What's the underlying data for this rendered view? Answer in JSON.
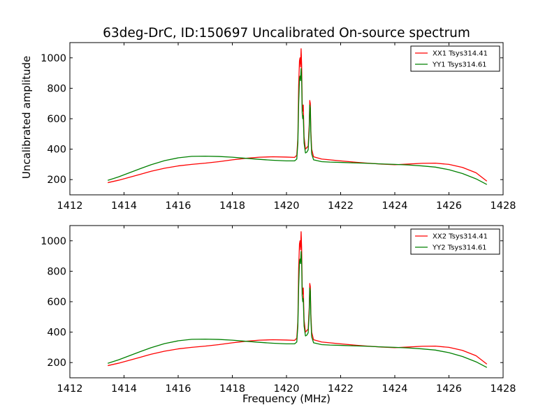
{
  "chart_data": {
    "type": "line",
    "title": "63deg-DrC, ID:150697 Uncalibrated On-source spectrum",
    "xlabel": "Frequency (MHz)",
    "ylabel": "Uncalibrated amplitude",
    "xlim": [
      1412,
      1428
    ],
    "ylim": [
      100,
      1100
    ],
    "xticks": [
      1412,
      1414,
      1416,
      1418,
      1420,
      1422,
      1424,
      1426,
      1428
    ],
    "yticks": [
      200,
      400,
      600,
      800,
      1000
    ],
    "colors": {
      "xx": "#ff0000",
      "yy": "#008000"
    },
    "panels": [
      {
        "legend_position": "top-right",
        "series": [
          {
            "name": "XX1 Tsys314.41",
            "color": "#ff0000",
            "points": [
              [
                1413.4,
                180
              ],
              [
                1413.8,
                196
              ],
              [
                1414.2,
                215
              ],
              [
                1414.6,
                235
              ],
              [
                1415.0,
                255
              ],
              [
                1415.5,
                275
              ],
              [
                1416.0,
                290
              ],
              [
                1416.5,
                300
              ],
              [
                1417.0,
                308
              ],
              [
                1417.5,
                318
              ],
              [
                1418.0,
                330
              ],
              [
                1418.5,
                340
              ],
              [
                1419.0,
                347
              ],
              [
                1419.5,
                350
              ],
              [
                1420.0,
                348
              ],
              [
                1420.3,
                346
              ],
              [
                1420.38,
                360
              ],
              [
                1420.42,
                470
              ],
              [
                1420.45,
                820
              ],
              [
                1420.48,
                980
              ],
              [
                1420.5,
                1000
              ],
              [
                1420.52,
                940
              ],
              [
                1420.54,
                1060
              ],
              [
                1420.56,
                950
              ],
              [
                1420.58,
                700
              ],
              [
                1420.6,
                650
              ],
              [
                1420.62,
                690
              ],
              [
                1420.65,
                480
              ],
              [
                1420.7,
                400
              ],
              [
                1420.75,
                410
              ],
              [
                1420.8,
                420
              ],
              [
                1420.84,
                560
              ],
              [
                1420.86,
                720
              ],
              [
                1420.88,
                700
              ],
              [
                1420.9,
                520
              ],
              [
                1420.93,
                400
              ],
              [
                1421.0,
                350
              ],
              [
                1421.3,
                335
              ],
              [
                1421.6,
                330
              ],
              [
                1422.0,
                323
              ],
              [
                1422.5,
                315
              ],
              [
                1423.0,
                308
              ],
              [
                1423.5,
                302
              ],
              [
                1424.0,
                298
              ],
              [
                1424.5,
                302
              ],
              [
                1425.0,
                307
              ],
              [
                1425.5,
                308
              ],
              [
                1426.0,
                300
              ],
              [
                1426.5,
                280
              ],
              [
                1427.0,
                245
              ],
              [
                1427.4,
                190
              ]
            ]
          },
          {
            "name": "YY1 Tsys314.61",
            "color": "#008000",
            "points": [
              [
                1413.4,
                195
              ],
              [
                1413.8,
                218
              ],
              [
                1414.2,
                245
              ],
              [
                1414.6,
                272
              ],
              [
                1415.0,
                298
              ],
              [
                1415.5,
                325
              ],
              [
                1416.0,
                343
              ],
              [
                1416.5,
                353
              ],
              [
                1417.0,
                354
              ],
              [
                1417.5,
                352
              ],
              [
                1418.0,
                347
              ],
              [
                1418.5,
                340
              ],
              [
                1419.0,
                333
              ],
              [
                1419.5,
                327
              ],
              [
                1420.0,
                323
              ],
              [
                1420.3,
                323
              ],
              [
                1420.38,
                335
              ],
              [
                1420.42,
                440
              ],
              [
                1420.45,
                700
              ],
              [
                1420.48,
                860
              ],
              [
                1420.5,
                880
              ],
              [
                1420.52,
                850
              ],
              [
                1420.54,
                930
              ],
              [
                1420.56,
                860
              ],
              [
                1420.58,
                640
              ],
              [
                1420.6,
                600
              ],
              [
                1420.62,
                620
              ],
              [
                1420.65,
                440
              ],
              [
                1420.7,
                375
              ],
              [
                1420.75,
                380
              ],
              [
                1420.8,
                395
              ],
              [
                1420.84,
                520
              ],
              [
                1420.86,
                690
              ],
              [
                1420.88,
                670
              ],
              [
                1420.9,
                490
              ],
              [
                1420.93,
                370
              ],
              [
                1421.0,
                330
              ],
              [
                1421.3,
                318
              ],
              [
                1421.6,
                315
              ],
              [
                1422.0,
                313
              ],
              [
                1422.5,
                310
              ],
              [
                1423.0,
                307
              ],
              [
                1423.5,
                303
              ],
              [
                1424.0,
                300
              ],
              [
                1424.5,
                296
              ],
              [
                1425.0,
                290
              ],
              [
                1425.5,
                282
              ],
              [
                1426.0,
                265
              ],
              [
                1426.5,
                240
              ],
              [
                1427.0,
                205
              ],
              [
                1427.4,
                168
              ]
            ]
          }
        ]
      },
      {
        "legend_position": "top-right",
        "series": [
          {
            "name": "XX2 Tsys314.41",
            "color": "#ff0000",
            "points": [
              [
                1413.4,
                180
              ],
              [
                1413.8,
                196
              ],
              [
                1414.2,
                215
              ],
              [
                1414.6,
                235
              ],
              [
                1415.0,
                255
              ],
              [
                1415.5,
                275
              ],
              [
                1416.0,
                290
              ],
              [
                1416.5,
                300
              ],
              [
                1417.0,
                308
              ],
              [
                1417.5,
                318
              ],
              [
                1418.0,
                330
              ],
              [
                1418.5,
                340
              ],
              [
                1419.0,
                347
              ],
              [
                1419.5,
                350
              ],
              [
                1420.0,
                348
              ],
              [
                1420.3,
                346
              ],
              [
                1420.38,
                360
              ],
              [
                1420.42,
                470
              ],
              [
                1420.45,
                820
              ],
              [
                1420.48,
                980
              ],
              [
                1420.5,
                1000
              ],
              [
                1420.52,
                940
              ],
              [
                1420.54,
                1060
              ],
              [
                1420.56,
                950
              ],
              [
                1420.58,
                700
              ],
              [
                1420.6,
                650
              ],
              [
                1420.62,
                690
              ],
              [
                1420.65,
                480
              ],
              [
                1420.7,
                400
              ],
              [
                1420.75,
                410
              ],
              [
                1420.8,
                420
              ],
              [
                1420.84,
                560
              ],
              [
                1420.86,
                720
              ],
              [
                1420.88,
                700
              ],
              [
                1420.9,
                520
              ],
              [
                1420.93,
                400
              ],
              [
                1421.0,
                350
              ],
              [
                1421.3,
                335
              ],
              [
                1421.6,
                330
              ],
              [
                1422.0,
                323
              ],
              [
                1422.5,
                315
              ],
              [
                1423.0,
                308
              ],
              [
                1423.5,
                302
              ],
              [
                1424.0,
                298
              ],
              [
                1424.5,
                302
              ],
              [
                1425.0,
                307
              ],
              [
                1425.5,
                308
              ],
              [
                1426.0,
                300
              ],
              [
                1426.5,
                280
              ],
              [
                1427.0,
                245
              ],
              [
                1427.4,
                190
              ]
            ]
          },
          {
            "name": "YY2 Tsys314.61",
            "color": "#008000",
            "points": [
              [
                1413.4,
                195
              ],
              [
                1413.8,
                218
              ],
              [
                1414.2,
                245
              ],
              [
                1414.6,
                272
              ],
              [
                1415.0,
                298
              ],
              [
                1415.5,
                325
              ],
              [
                1416.0,
                343
              ],
              [
                1416.5,
                353
              ],
              [
                1417.0,
                354
              ],
              [
                1417.5,
                352
              ],
              [
                1418.0,
                347
              ],
              [
                1418.5,
                340
              ],
              [
                1419.0,
                333
              ],
              [
                1419.5,
                327
              ],
              [
                1420.0,
                323
              ],
              [
                1420.3,
                323
              ],
              [
                1420.38,
                335
              ],
              [
                1420.42,
                440
              ],
              [
                1420.45,
                700
              ],
              [
                1420.48,
                860
              ],
              [
                1420.5,
                880
              ],
              [
                1420.52,
                850
              ],
              [
                1420.54,
                930
              ],
              [
                1420.56,
                860
              ],
              [
                1420.58,
                640
              ],
              [
                1420.6,
                600
              ],
              [
                1420.62,
                620
              ],
              [
                1420.65,
                440
              ],
              [
                1420.7,
                375
              ],
              [
                1420.75,
                380
              ],
              [
                1420.8,
                395
              ],
              [
                1420.84,
                520
              ],
              [
                1420.86,
                690
              ],
              [
                1420.88,
                670
              ],
              [
                1420.9,
                490
              ],
              [
                1420.93,
                370
              ],
              [
                1421.0,
                330
              ],
              [
                1421.3,
                318
              ],
              [
                1421.6,
                315
              ],
              [
                1422.0,
                313
              ],
              [
                1422.5,
                310
              ],
              [
                1423.0,
                307
              ],
              [
                1423.5,
                303
              ],
              [
                1424.0,
                300
              ],
              [
                1424.5,
                296
              ],
              [
                1425.0,
                290
              ],
              [
                1425.5,
                282
              ],
              [
                1426.0,
                265
              ],
              [
                1426.5,
                240
              ],
              [
                1427.0,
                205
              ],
              [
                1427.4,
                168
              ]
            ]
          }
        ]
      }
    ]
  }
}
